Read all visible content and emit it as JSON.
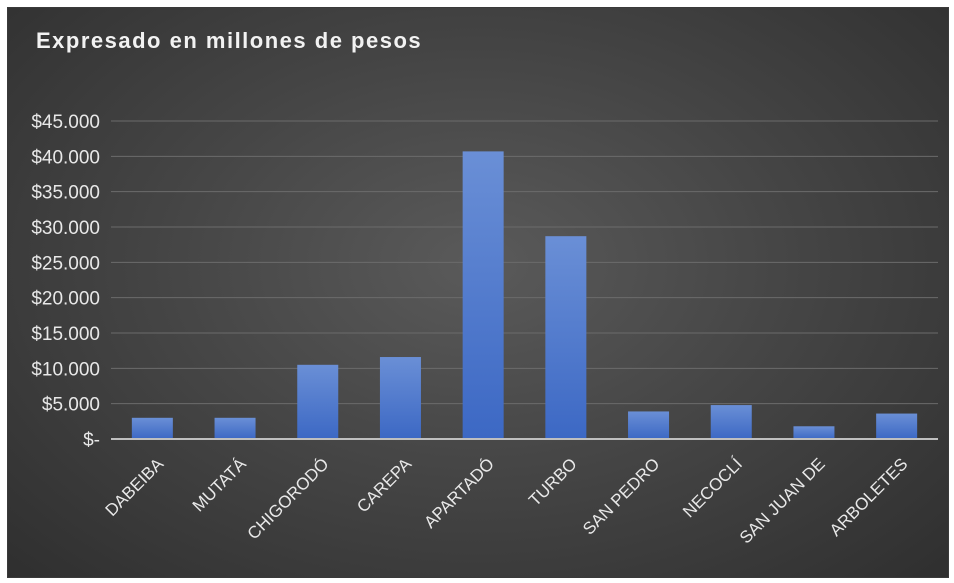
{
  "chart_data": {
    "type": "bar",
    "title": "Expresado en millones de pesos",
    "xlabel": "",
    "ylabel": "",
    "categories": [
      "DABEIBA",
      "MUTATÁ",
      "CHIGORODÓ",
      "CAREPA",
      "APARTADÓ",
      "TURBO",
      "SAN PEDRO",
      "NECOCLÍ",
      "SAN JUAN DE",
      "ARBOLETES"
    ],
    "values": [
      3000,
      3000,
      10500,
      11600,
      40700,
      28700,
      3900,
      4800,
      1800,
      3600
    ],
    "ylim": [
      0,
      45000
    ],
    "y_ticks": [
      0,
      5000,
      10000,
      15000,
      20000,
      25000,
      30000,
      35000,
      40000,
      45000
    ],
    "y_tick_labels": [
      "$-",
      "$5.000",
      "$10.000",
      "$15.000",
      "$20.000",
      "$25.000",
      "$30.000",
      "$35.000",
      "$40.000",
      "$45.000"
    ],
    "grid": true,
    "legend": "none",
    "colors": {
      "bar_top": "#6a8fd6",
      "bar_bottom": "#3c68c4",
      "grid": "#6b6b6b",
      "axis": "#bfbfbf",
      "text": "#e8e8e8"
    }
  }
}
